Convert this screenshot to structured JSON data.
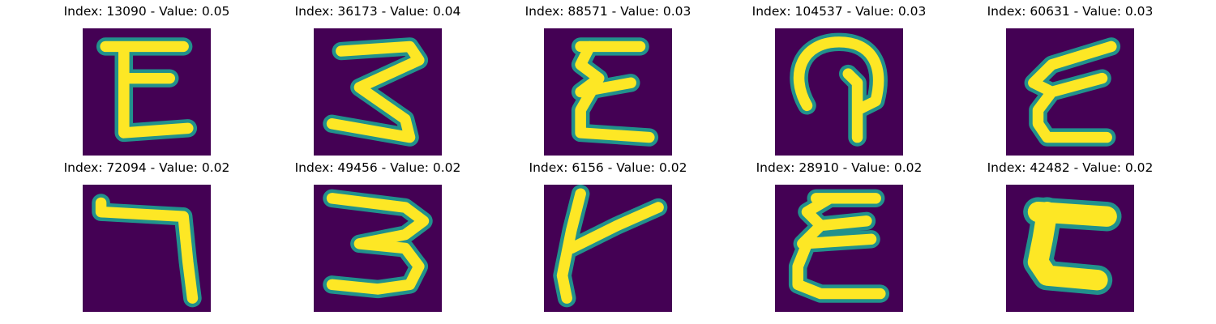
{
  "panels": [
    {
      "title": "Index: 13090 - Value: 0.05",
      "glyph": "E-like"
    },
    {
      "title": "Index: 36173 - Value: 0.04",
      "glyph": "3-like"
    },
    {
      "title": "Index: 88571 - Value: 0.03",
      "glyph": "E-like"
    },
    {
      "title": "Index: 104537 - Value: 0.03",
      "glyph": "loop"
    },
    {
      "title": "Index: 60631 - Value: 0.03",
      "glyph": "E-like slanted"
    },
    {
      "title": "Index: 72094 - Value: 0.02",
      "glyph": "7-like"
    },
    {
      "title": "Index: 49456 - Value: 0.02",
      "glyph": "3-like"
    },
    {
      "title": "Index: 6156 - Value: 0.02",
      "glyph": "k-like"
    },
    {
      "title": "Index: 28910 - Value: 0.02",
      "glyph": "E-like"
    },
    {
      "title": "Index: 42482 - Value: 0.02",
      "glyph": "C-like block"
    }
  ],
  "colors": {
    "background": "#440154",
    "stroke": "#fde725",
    "edge": "#21918c"
  }
}
